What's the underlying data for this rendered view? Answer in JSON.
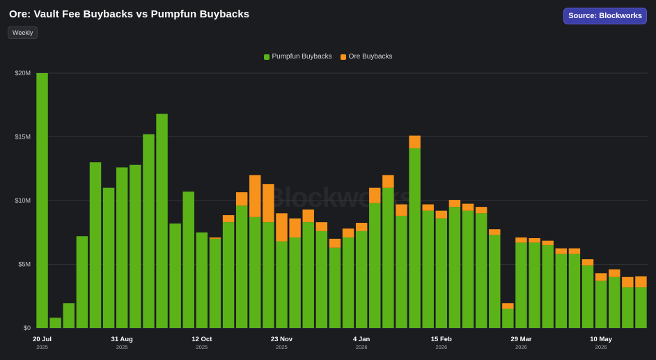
{
  "header": {
    "title": "Ore: Vault Fee Buybacks vs Pumpfun Buybacks",
    "source_label": "Source: Blockworks",
    "period_label": "Weekly"
  },
  "watermark": "Blockworks",
  "colors": {
    "pumpfun": "#5bb318",
    "ore": "#f7931a",
    "background": "#1b1c20",
    "source_button": "#3d3fa8"
  },
  "chart_data": {
    "type": "bar",
    "stacked": true,
    "title": "Ore: Vault Fee Buybacks vs Pumpfun Buybacks",
    "legend_position": "top-center",
    "grid": true,
    "ylim": [
      0,
      20000000
    ],
    "y_ticks": [
      {
        "value": 0,
        "label": "$0"
      },
      {
        "value": 5000000,
        "label": "$5M"
      },
      {
        "value": 10000000,
        "label": "$10M"
      },
      {
        "value": 15000000,
        "label": "$15M"
      },
      {
        "value": 20000000,
        "label": "$20M"
      }
    ],
    "x_ticks": [
      {
        "index": 0,
        "label": "20 Jul",
        "year": "2025"
      },
      {
        "index": 6,
        "label": "31 Aug",
        "year": "2025"
      },
      {
        "index": 12,
        "label": "12 Oct",
        "year": "2025"
      },
      {
        "index": 18,
        "label": "23 Nov",
        "year": "2025"
      },
      {
        "index": 24,
        "label": "4 Jan",
        "year": "2026"
      },
      {
        "index": 30,
        "label": "15 Feb",
        "year": "2026"
      },
      {
        "index": 36,
        "label": "29 Mar",
        "year": "2026"
      },
      {
        "index": 42,
        "label": "10 May",
        "year": "2026"
      }
    ],
    "categories": [
      "2025-07-20",
      "2025-07-27",
      "2025-08-03",
      "2025-08-10",
      "2025-08-17",
      "2025-08-24",
      "2025-08-31",
      "2025-09-07",
      "2025-09-14",
      "2025-09-21",
      "2025-09-28",
      "2025-10-05",
      "2025-10-12",
      "2025-10-19",
      "2025-10-26",
      "2025-11-02",
      "2025-11-09",
      "2025-11-16",
      "2025-11-23",
      "2025-11-30",
      "2025-12-07",
      "2025-12-14",
      "2025-12-21",
      "2025-12-28",
      "2026-01-04",
      "2026-01-11",
      "2026-01-18",
      "2026-01-25",
      "2026-02-01",
      "2026-02-08",
      "2026-02-15",
      "2026-02-22",
      "2026-03-01",
      "2026-03-08",
      "2026-03-15",
      "2026-03-22",
      "2026-03-29",
      "2026-04-05",
      "2026-04-12",
      "2026-04-19",
      "2026-04-26",
      "2026-05-03",
      "2026-05-10",
      "2026-05-17",
      "2026-05-24",
      "2026-05-31"
    ],
    "series": [
      {
        "name": "Pumpfun Buybacks",
        "color": "#5bb318",
        "values": [
          20000000,
          800000,
          1950000,
          7200000,
          13000000,
          11000000,
          12600000,
          12800000,
          15200000,
          16800000,
          8200000,
          10700000,
          7500000,
          7000000,
          8300000,
          9600000,
          8700000,
          8300000,
          6800000,
          7100000,
          8300000,
          7600000,
          6300000,
          7100000,
          7600000,
          9800000,
          11000000,
          8800000,
          14100000,
          9200000,
          8600000,
          9500000,
          9200000,
          9000000,
          7300000,
          1500000,
          6700000,
          6700000,
          6500000,
          5800000,
          5800000,
          4900000,
          3700000,
          4000000,
          3200000,
          3200000
        ]
      },
      {
        "name": "Ore Buybacks",
        "color": "#f7931a",
        "values": [
          0,
          0,
          0,
          0,
          0,
          0,
          0,
          0,
          0,
          0,
          0,
          0,
          0,
          100000,
          550000,
          1050000,
          3300000,
          3000000,
          2200000,
          1500000,
          1000000,
          700000,
          700000,
          700000,
          650000,
          1200000,
          1000000,
          900000,
          1000000,
          500000,
          600000,
          550000,
          550000,
          500000,
          450000,
          450000,
          400000,
          350000,
          350000,
          450000,
          450000,
          500000,
          600000,
          600000,
          800000,
          850000
        ]
      }
    ]
  }
}
